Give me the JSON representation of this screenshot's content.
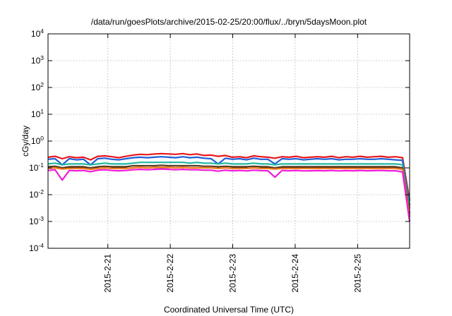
{
  "chart_data": {
    "type": "line",
    "title": "/data/run/goesPlots/archive/2015-02-25/20:00/flux/../bryn/5daysMoon.plot",
    "xlabel": "Coordinated Universal Time (UTC)",
    "ylabel": "cGy/day",
    "yscale": "log",
    "ylim": [
      0.0001,
      10000
    ],
    "xlim": [
      "2015-02-20 01:00",
      "2015-02-25 20:00"
    ],
    "y_tick_labels": [
      {
        "base": "10",
        "exp": "-4"
      },
      {
        "base": "10",
        "exp": "-3"
      },
      {
        "base": "10",
        "exp": "-2"
      },
      {
        "base": "10",
        "exp": "-1"
      },
      {
        "base": "10",
        "exp": "0"
      },
      {
        "base": "10",
        "exp": "1"
      },
      {
        "base": "10",
        "exp": "2"
      },
      {
        "base": "10",
        "exp": "3"
      },
      {
        "base": "10",
        "exp": "4"
      }
    ],
    "x_tick_labels": [
      "2015-2-21",
      "2015-2-22",
      "2015-2-23",
      "2015-2-24",
      "2015-2-25"
    ],
    "grid": true,
    "reference_line": {
      "y": 0.1,
      "color": "#000000"
    },
    "series": [
      {
        "color": "#e8171c",
        "values": [
          0.25,
          0.27,
          0.22,
          0.26,
          0.24,
          0.25,
          0.2,
          0.27,
          0.28,
          0.26,
          0.24,
          0.27,
          0.3,
          0.32,
          0.31,
          0.33,
          0.34,
          0.33,
          0.32,
          0.34,
          0.31,
          0.33,
          0.29,
          0.3,
          0.27,
          0.29,
          0.25,
          0.26,
          0.24,
          0.28,
          0.26,
          0.25,
          0.23,
          0.26,
          0.25,
          0.27,
          0.24,
          0.25,
          0.26,
          0.25,
          0.27,
          0.24,
          0.26,
          0.25,
          0.27,
          0.25,
          0.26,
          0.27,
          0.25,
          0.26,
          0.24,
          0.006
        ]
      },
      {
        "color": "#1f5fd8",
        "values": [
          0.21,
          0.22,
          0.13,
          0.22,
          0.2,
          0.21,
          0.13,
          0.22,
          0.23,
          0.21,
          0.2,
          0.22,
          0.24,
          0.25,
          0.24,
          0.25,
          0.26,
          0.25,
          0.24,
          0.26,
          0.24,
          0.25,
          0.23,
          0.22,
          0.14,
          0.23,
          0.21,
          0.22,
          0.2,
          0.23,
          0.21,
          0.21,
          0.14,
          0.22,
          0.21,
          0.22,
          0.2,
          0.21,
          0.22,
          0.21,
          0.22,
          0.2,
          0.21,
          0.21,
          0.22,
          0.21,
          0.21,
          0.22,
          0.21,
          0.2,
          0.19,
          0.004
        ]
      },
      {
        "color": "#20b8a0",
        "values": [
          0.14,
          0.15,
          0.13,
          0.14,
          0.14,
          0.14,
          0.13,
          0.14,
          0.15,
          0.14,
          0.14,
          0.14,
          0.15,
          0.16,
          0.16,
          0.16,
          0.16,
          0.16,
          0.16,
          0.16,
          0.15,
          0.16,
          0.15,
          0.15,
          0.14,
          0.15,
          0.14,
          0.14,
          0.14,
          0.15,
          0.14,
          0.14,
          0.13,
          0.14,
          0.14,
          0.14,
          0.14,
          0.14,
          0.14,
          0.14,
          0.14,
          0.14,
          0.14,
          0.14,
          0.14,
          0.14,
          0.14,
          0.14,
          0.14,
          0.14,
          0.13,
          0.003
        ]
      },
      {
        "color": "#5a3a1e",
        "values": [
          0.11,
          0.115,
          0.1,
          0.11,
          0.11,
          0.11,
          0.1,
          0.11,
          0.115,
          0.11,
          0.11,
          0.11,
          0.12,
          0.12,
          0.12,
          0.12,
          0.125,
          0.12,
          0.12,
          0.12,
          0.12,
          0.12,
          0.115,
          0.115,
          0.11,
          0.115,
          0.11,
          0.11,
          0.11,
          0.115,
          0.11,
          0.11,
          0.1,
          0.11,
          0.11,
          0.11,
          0.11,
          0.11,
          0.11,
          0.11,
          0.11,
          0.11,
          0.11,
          0.11,
          0.11,
          0.11,
          0.11,
          0.11,
          0.11,
          0.11,
          0.1,
          0.002
        ]
      },
      {
        "color": "#f07a1a",
        "values": [
          0.095,
          0.1,
          0.09,
          0.095,
          0.095,
          0.095,
          0.088,
          0.095,
          0.1,
          0.095,
          0.095,
          0.095,
          0.1,
          0.105,
          0.1,
          0.105,
          0.105,
          0.105,
          0.1,
          0.105,
          0.1,
          0.1,
          0.1,
          0.1,
          0.095,
          0.1,
          0.095,
          0.095,
          0.095,
          0.1,
          0.095,
          0.095,
          0.09,
          0.095,
          0.095,
          0.095,
          0.095,
          0.095,
          0.095,
          0.095,
          0.095,
          0.095,
          0.095,
          0.095,
          0.095,
          0.095,
          0.095,
          0.095,
          0.095,
          0.095,
          0.088,
          0.0015
        ]
      },
      {
        "color": "#f01cd8",
        "values": [
          0.08,
          0.085,
          0.035,
          0.08,
          0.078,
          0.08,
          0.072,
          0.082,
          0.085,
          0.08,
          0.078,
          0.08,
          0.085,
          0.088,
          0.085,
          0.088,
          0.09,
          0.088,
          0.085,
          0.088,
          0.085,
          0.085,
          0.082,
          0.082,
          0.075,
          0.082,
          0.078,
          0.08,
          0.077,
          0.082,
          0.079,
          0.078,
          0.045,
          0.08,
          0.078,
          0.08,
          0.077,
          0.078,
          0.079,
          0.078,
          0.08,
          0.077,
          0.079,
          0.078,
          0.08,
          0.078,
          0.079,
          0.08,
          0.078,
          0.078,
          0.07,
          0.001
        ]
      }
    ]
  }
}
